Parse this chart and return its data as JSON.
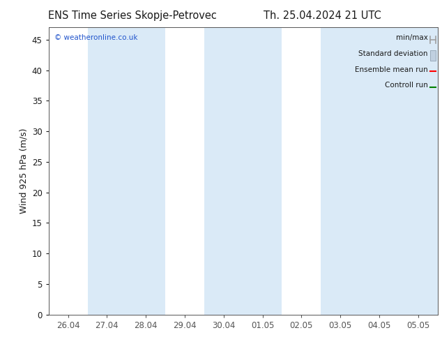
{
  "title_left": "ENS Time Series Skopje-Petrovec",
  "title_right": "Th. 25.04.2024 21 UTC",
  "ylabel": "Wind 925 hPa (m/s)",
  "watermark": "© weatheronline.co.uk",
  "ylim": [
    0,
    47
  ],
  "yticks": [
    0,
    5,
    10,
    15,
    20,
    25,
    30,
    35,
    40,
    45
  ],
  "xtick_labels": [
    "26.04",
    "27.04",
    "28.04",
    "29.04",
    "30.04",
    "01.05",
    "02.05",
    "03.05",
    "04.05",
    "05.05"
  ],
  "x_values": [
    0,
    1,
    2,
    3,
    4,
    5,
    6,
    7,
    8,
    9
  ],
  "bg_color": "#ffffff",
  "plot_bg_color": "#ffffff",
  "shaded_band_color": "#daeaf7",
  "shaded_columns": [
    1,
    2,
    4,
    5,
    7,
    8,
    9
  ],
  "legend_labels": [
    "min/max",
    "Standard deviation",
    "Ensemble mean run",
    "Controll run"
  ],
  "legend_colors": [
    "#a0a0a0",
    "#c0d0e0",
    "#ff0000",
    "#008000"
  ],
  "font_color": "#1a1a1a",
  "title_fontsize": 10.5,
  "axis_fontsize": 9,
  "tick_fontsize": 8.5
}
